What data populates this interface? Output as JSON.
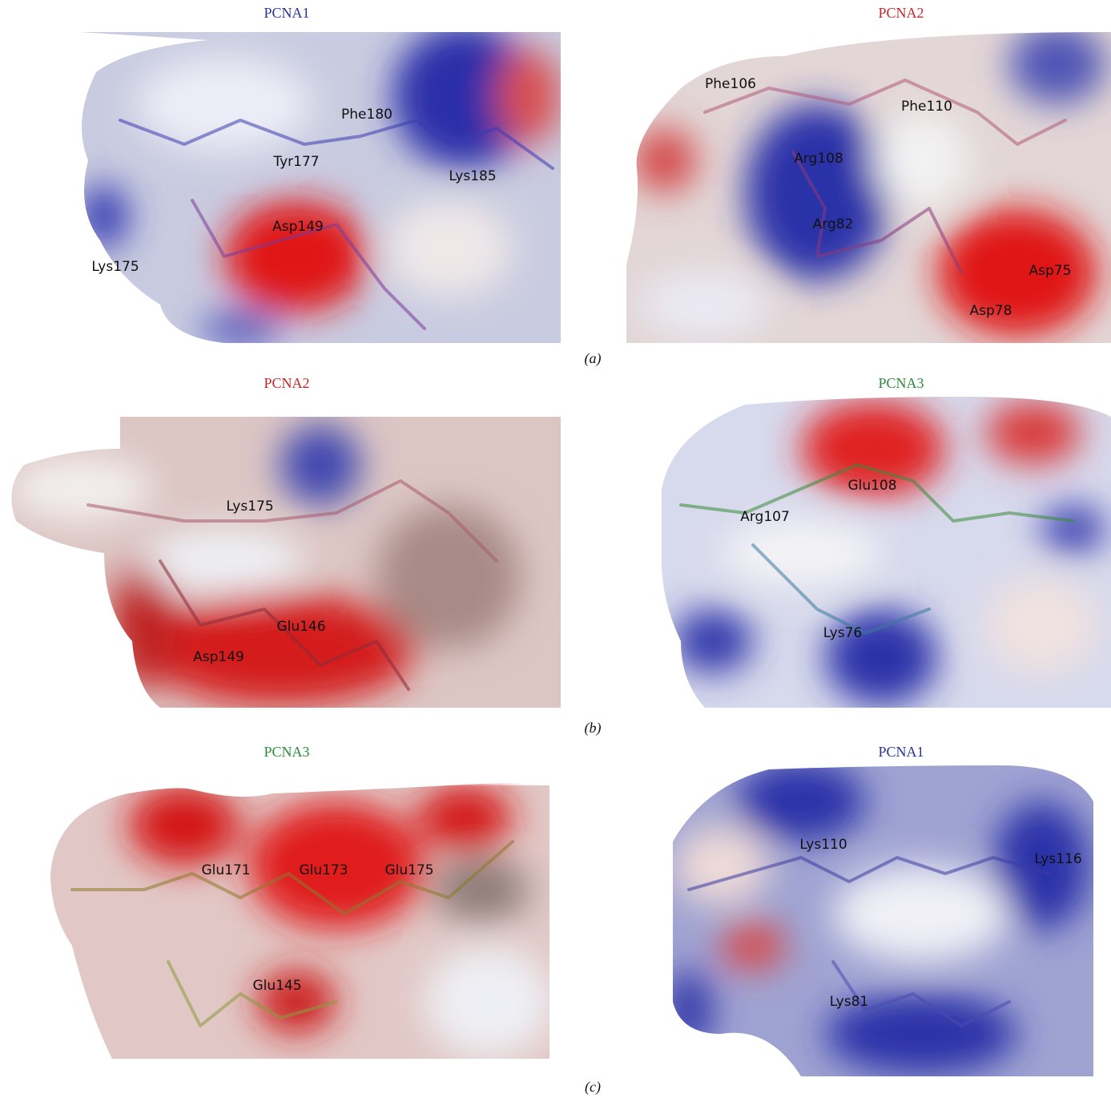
{
  "figure": {
    "rows": [
      {
        "label": "(a)",
        "panels": [
          {
            "title": "PCNA1",
            "residues": [
              "Phe180",
              "Tyr177",
              "Lys185",
              "Asp149",
              "Lys175"
            ]
          },
          {
            "title": "PCNA2",
            "residues": [
              "Phe106",
              "Phe110",
              "Arg108",
              "Arg82",
              "Asp75",
              "Asp78"
            ]
          }
        ]
      },
      {
        "label": "(b)",
        "panels": [
          {
            "title": "PCNA2",
            "residues": [
              "Lys175",
              "Glu146",
              "Asp149"
            ]
          },
          {
            "title": "PCNA3",
            "residues": [
              "Glu108",
              "Arg107",
              "Lys76"
            ]
          }
        ]
      },
      {
        "label": "(c)",
        "panels": [
          {
            "title": "PCNA3",
            "residues": [
              "Glu171",
              "Glu173",
              "Glu175",
              "Glu145"
            ]
          },
          {
            "title": "PCNA1",
            "residues": [
              "Lys110",
              "Lys116",
              "Lys81"
            ]
          }
        ]
      }
    ]
  }
}
